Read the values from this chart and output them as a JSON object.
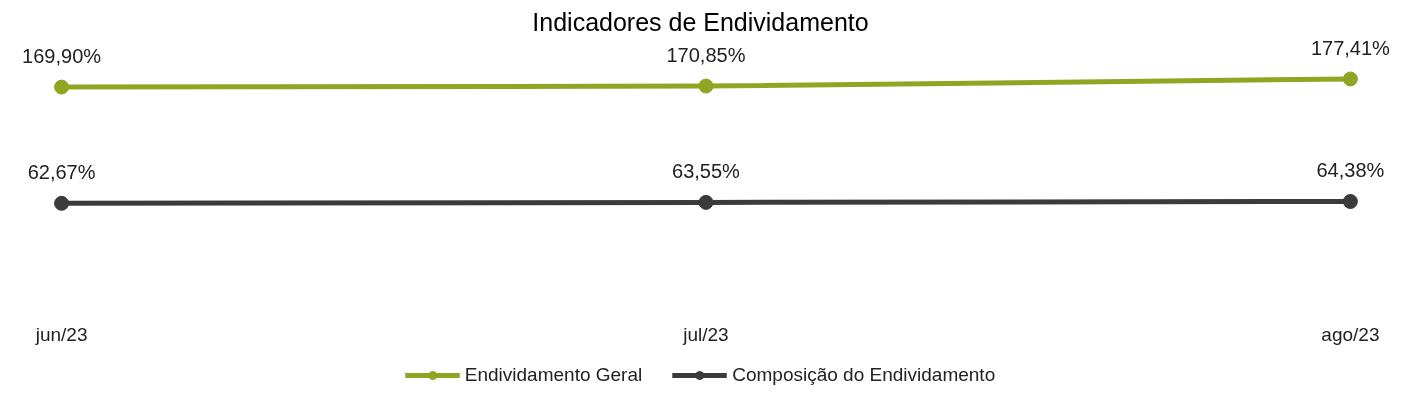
{
  "chart_data": {
    "type": "line",
    "title": "Indicadores de Endividamento",
    "categories": [
      "jun/23",
      "jul/23",
      "ago/23"
    ],
    "series": [
      {
        "name": "Endividamento Geral",
        "color": "#8ea622",
        "values": [
          169.9,
          170.85,
          177.41
        ],
        "value_labels": [
          "169,90%",
          "170,85%",
          "177,41%"
        ]
      },
      {
        "name": "Composição do Endividamento",
        "color": "#3b3b3b",
        "values": [
          62.67,
          63.55,
          64.38
        ],
        "value_labels": [
          "62,67%",
          "63,55%",
          "64,38%"
        ]
      }
    ],
    "marker": "circle",
    "line_style": "solid",
    "legend": "bottom",
    "grid": false,
    "tick_labels": "x"
  }
}
